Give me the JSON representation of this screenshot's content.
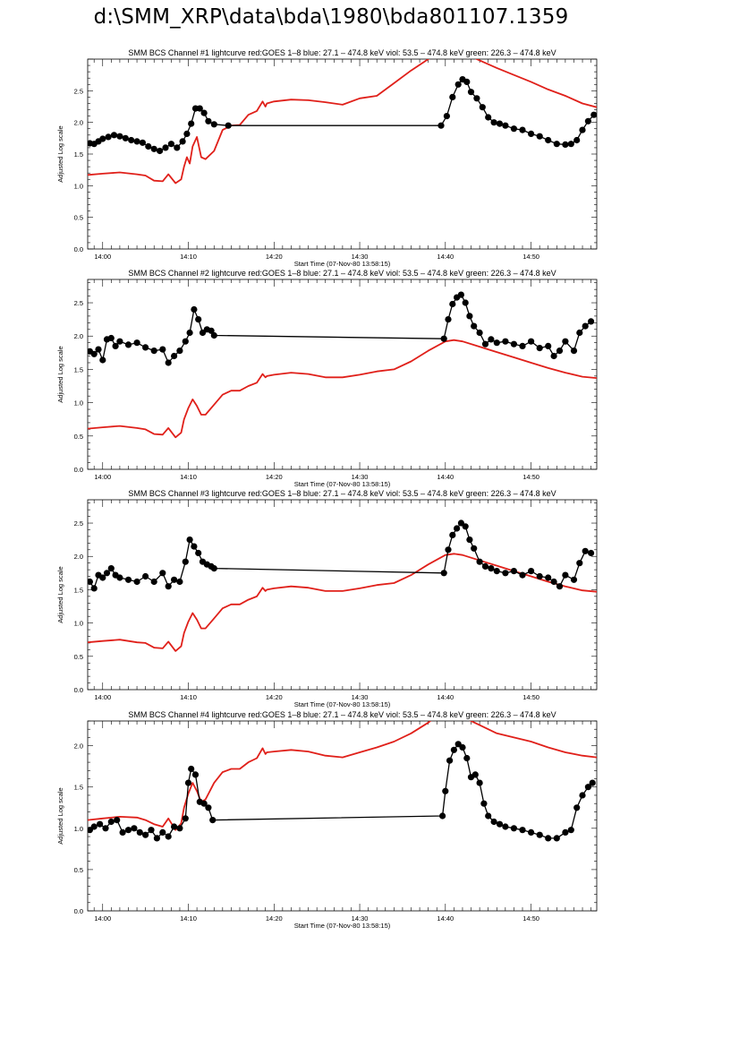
{
  "page": {
    "title": "d:\\SMM_XRP\\data\\bda\\1980\\bda801107.1359"
  },
  "colors": {
    "goes": "#e0201a",
    "bcs": "#000000"
  },
  "chart_data": [
    {
      "type": "line",
      "title": "SMM BCS Channel #1 lightcurve  red:GOES 1–8  blue: 27.1 – 474.8 keV  viol: 53.5 – 474.8 keV  green: 226.3 – 474.8 keV",
      "xlabel": "Start Time (07-Nov-80 13:58:15)",
      "ylabel": "Adjusted Log scale",
      "xlim": [
        "13:58:15",
        "14:57:40"
      ],
      "ylim": [
        0,
        3.0
      ],
      "xticks": [
        "14:00",
        "14:10",
        "14:20",
        "14:30",
        "14:40",
        "14:50"
      ],
      "yticks": [
        "0.0",
        "0.5",
        "1.0",
        "1.5",
        "2.0",
        "2.5"
      ],
      "series": [
        {
          "color": "#e0201a",
          "markers": false,
          "x": [
            "13:58:15",
            "14:00",
            "14:02",
            "14:04",
            "14:05",
            "14:06",
            "14:07",
            "14:07:40",
            "14:08:30",
            "14:09:10",
            "14:09:30",
            "14:09:50",
            "14:10:10",
            "14:10:30",
            "14:11",
            "14:11:30",
            "14:12",
            "14:13",
            "14:14",
            "14:15",
            "14:16",
            "14:17",
            "14:18",
            "14:18:40",
            "14:19",
            "14:19:10",
            "14:20",
            "14:22",
            "14:24",
            "14:26",
            "14:28",
            "14:30",
            "14:32",
            "14:34",
            "14:36",
            "14:38",
            "14:40",
            "14:42",
            "14:44",
            "14:46",
            "14:48",
            "14:50",
            "14:52",
            "14:54",
            "14:56",
            "14:57:40"
          ],
          "y": [
            1.17,
            1.19,
            1.21,
            1.18,
            1.16,
            1.08,
            1.07,
            1.18,
            1.04,
            1.1,
            1.3,
            1.45,
            1.35,
            1.62,
            1.77,
            1.45,
            1.42,
            1.55,
            1.88,
            1.95,
            1.96,
            2.12,
            2.18,
            2.33,
            2.25,
            2.3,
            2.33,
            2.36,
            2.35,
            2.32,
            2.28,
            2.38,
            2.42,
            2.62,
            2.82,
            3.0,
            3.15,
            3.1,
            2.98,
            2.86,
            2.75,
            2.64,
            2.52,
            2.42,
            2.3,
            2.24
          ]
        },
        {
          "color": "#000000",
          "markers": true,
          "x": [
            "13:58:30",
            "13:59",
            "13:59:30",
            "14:00",
            "14:00:40",
            "14:01:20",
            "14:02",
            "14:02:40",
            "14:03:20",
            "14:04",
            "14:04:40",
            "14:05:20",
            "14:06",
            "14:06:40",
            "14:07:20",
            "14:08",
            "14:08:40",
            "14:09:20",
            "14:09:50",
            "14:10:20",
            "14:10:50",
            "14:11:20",
            "14:11:50",
            "14:12:20",
            "14:13",
            "14:14:40",
            "14:39:30",
            "14:40:10",
            "14:40:50",
            "14:41:30",
            "14:42",
            "14:42:30",
            "14:43",
            "14:43:40",
            "14:44:20",
            "14:45",
            "14:45:40",
            "14:46:20",
            "14:47",
            "14:48",
            "14:49",
            "14:50",
            "14:51",
            "14:52",
            "14:53",
            "14:54",
            "14:54:40",
            "14:55:20",
            "14:56",
            "14:56:40",
            "14:57:20"
          ],
          "y": [
            1.67,
            1.66,
            1.7,
            1.74,
            1.77,
            1.8,
            1.78,
            1.75,
            1.72,
            1.7,
            1.68,
            1.62,
            1.58,
            1.55,
            1.6,
            1.66,
            1.6,
            1.7,
            1.82,
            1.98,
            2.22,
            2.22,
            2.15,
            2.02,
            1.97,
            1.95,
            1.95,
            2.1,
            2.4,
            2.6,
            2.68,
            2.64,
            2.48,
            2.38,
            2.24,
            2.08,
            2.0,
            1.98,
            1.95,
            1.9,
            1.88,
            1.82,
            1.78,
            1.72,
            1.66,
            1.65,
            1.66,
            1.72,
            1.88,
            2.02,
            2.12
          ]
        }
      ]
    },
    {
      "type": "line",
      "title": "SMM BCS Channel #2 lightcurve  red:GOES 1–8  blue: 27.1 – 474.8 keV  viol: 53.5 – 474.8 keV  green: 226.3 – 474.8 keV",
      "xlabel": "Start Time (07-Nov-80 13:58:15)",
      "ylabel": "Adjusted Log scale",
      "xlim": [
        "13:58:15",
        "14:57:40"
      ],
      "ylim": [
        0,
        2.85
      ],
      "xticks": [
        "14:00",
        "14:10",
        "14:20",
        "14:30",
        "14:40",
        "14:50"
      ],
      "yticks": [
        "0.0",
        "0.5",
        "1.0",
        "1.5",
        "2.0",
        "2.5"
      ],
      "series": [
        {
          "color": "#e0201a",
          "markers": false,
          "x": [
            "13:58:15",
            "14:00",
            "14:02",
            "14:04",
            "14:05",
            "14:06",
            "14:07",
            "14:07:40",
            "14:08:30",
            "14:09:10",
            "14:09:30",
            "14:10",
            "14:10:30",
            "14:11",
            "14:11:30",
            "14:12",
            "14:13",
            "14:14",
            "14:15",
            "14:16",
            "14:17",
            "14:18",
            "14:18:40",
            "14:19",
            "14:19:10",
            "14:20",
            "14:22",
            "14:24",
            "14:26",
            "14:28",
            "14:30",
            "14:32",
            "14:34",
            "14:36",
            "14:38",
            "14:40",
            "14:41",
            "14:42",
            "14:44",
            "14:46",
            "14:48",
            "14:50",
            "14:52",
            "14:54",
            "14:56",
            "14:57:40"
          ],
          "y": [
            0.61,
            0.63,
            0.65,
            0.62,
            0.6,
            0.53,
            0.52,
            0.62,
            0.48,
            0.55,
            0.75,
            0.92,
            1.05,
            0.95,
            0.82,
            0.82,
            0.97,
            1.12,
            1.18,
            1.18,
            1.25,
            1.3,
            1.43,
            1.38,
            1.4,
            1.42,
            1.45,
            1.43,
            1.38,
            1.38,
            1.42,
            1.47,
            1.5,
            1.62,
            1.78,
            1.92,
            1.94,
            1.92,
            1.84,
            1.76,
            1.68,
            1.6,
            1.52,
            1.45,
            1.39,
            1.37
          ]
        },
        {
          "color": "#000000",
          "markers": true,
          "x": [
            "13:58:30",
            "13:59",
            "13:59:30",
            "14:00",
            "14:00:30",
            "14:01",
            "14:01:30",
            "14:02",
            "14:03",
            "14:04",
            "14:05",
            "14:06",
            "14:07",
            "14:07:40",
            "14:08:20",
            "14:09",
            "14:09:40",
            "14:10:10",
            "14:10:40",
            "14:11:10",
            "14:11:40",
            "14:12:10",
            "14:12:40",
            "14:13",
            "14:39:50",
            "14:40:20",
            "14:40:50",
            "14:41:20",
            "14:41:50",
            "14:42:20",
            "14:42:50",
            "14:43:20",
            "14:44",
            "14:44:40",
            "14:45:20",
            "14:46",
            "14:47",
            "14:48",
            "14:49",
            "14:50",
            "14:51",
            "14:52",
            "14:52:40",
            "14:53:20",
            "14:54",
            "14:55",
            "14:55:40",
            "14:56:20",
            "14:57"
          ],
          "y": [
            1.77,
            1.73,
            1.8,
            1.64,
            1.95,
            1.97,
            1.85,
            1.92,
            1.87,
            1.9,
            1.83,
            1.78,
            1.8,
            1.6,
            1.7,
            1.78,
            1.92,
            2.05,
            2.4,
            2.25,
            2.05,
            2.1,
            2.08,
            2.01,
            1.96,
            2.25,
            2.48,
            2.58,
            2.62,
            2.5,
            2.3,
            2.15,
            2.05,
            1.88,
            1.95,
            1.9,
            1.92,
            1.88,
            1.85,
            1.92,
            1.82,
            1.85,
            1.7,
            1.78,
            1.92,
            1.78,
            2.05,
            2.15,
            2.22
          ]
        }
      ]
    },
    {
      "type": "line",
      "title": "SMM BCS Channel #3 lightcurve  red:GOES 1–8  blue: 27.1 – 474.8 keV  viol: 53.5 – 474.8 keV  green: 226.3 – 474.8 keV",
      "xlabel": "Start Time (07-Nov-80 13:58:15)",
      "ylabel": "Adjusted Log scale",
      "xlim": [
        "13:58:15",
        "14:57:40"
      ],
      "ylim": [
        0,
        2.85
      ],
      "xticks": [
        "14:00",
        "14:10",
        "14:20",
        "14:30",
        "14:40",
        "14:50"
      ],
      "yticks": [
        "0.0",
        "0.5",
        "1.0",
        "1.5",
        "2.0",
        "2.5"
      ],
      "series": [
        {
          "color": "#e0201a",
          "markers": false,
          "x": [
            "13:58:15",
            "14:00",
            "14:02",
            "14:04",
            "14:05",
            "14:06",
            "14:07",
            "14:07:40",
            "14:08:30",
            "14:09:10",
            "14:09:30",
            "14:10",
            "14:10:30",
            "14:11",
            "14:11:30",
            "14:12",
            "14:13",
            "14:14",
            "14:15",
            "14:16",
            "14:17",
            "14:18",
            "14:18:40",
            "14:19",
            "14:19:10",
            "14:20",
            "14:22",
            "14:24",
            "14:26",
            "14:28",
            "14:30",
            "14:32",
            "14:34",
            "14:36",
            "14:38",
            "14:40",
            "14:41",
            "14:42",
            "14:44",
            "14:46",
            "14:48",
            "14:50",
            "14:52",
            "14:54",
            "14:56",
            "14:57:40"
          ],
          "y": [
            0.71,
            0.73,
            0.75,
            0.71,
            0.7,
            0.63,
            0.62,
            0.72,
            0.58,
            0.65,
            0.85,
            1.02,
            1.15,
            1.05,
            0.92,
            0.92,
            1.07,
            1.22,
            1.28,
            1.28,
            1.35,
            1.4,
            1.53,
            1.48,
            1.5,
            1.52,
            1.55,
            1.53,
            1.48,
            1.48,
            1.52,
            1.57,
            1.6,
            1.72,
            1.88,
            2.02,
            2.04,
            2.02,
            1.94,
            1.86,
            1.78,
            1.7,
            1.62,
            1.55,
            1.49,
            1.47
          ]
        },
        {
          "color": "#000000",
          "markers": true,
          "x": [
            "13:58:30",
            "13:59",
            "13:59:30",
            "14:00",
            "14:00:30",
            "14:01",
            "14:01:30",
            "14:02",
            "14:03",
            "14:04",
            "14:05",
            "14:06",
            "14:07",
            "14:07:40",
            "14:08:20",
            "14:09",
            "14:09:40",
            "14:10:10",
            "14:10:40",
            "14:11:10",
            "14:11:40",
            "14:12:10",
            "14:12:40",
            "14:13",
            "14:39:50",
            "14:40:20",
            "14:40:50",
            "14:41:20",
            "14:41:50",
            "14:42:20",
            "14:42:50",
            "14:43:20",
            "14:44",
            "14:44:40",
            "14:45:20",
            "14:46",
            "14:47",
            "14:48",
            "14:49",
            "14:50",
            "14:51",
            "14:52",
            "14:52:40",
            "14:53:20",
            "14:54",
            "14:55",
            "14:55:40",
            "14:56:20",
            "14:57"
          ],
          "y": [
            1.62,
            1.52,
            1.72,
            1.68,
            1.75,
            1.82,
            1.72,
            1.68,
            1.65,
            1.62,
            1.7,
            1.62,
            1.75,
            1.55,
            1.65,
            1.62,
            1.92,
            2.25,
            2.15,
            2.05,
            1.92,
            1.88,
            1.85,
            1.82,
            1.75,
            2.1,
            2.32,
            2.42,
            2.5,
            2.45,
            2.25,
            2.12,
            1.92,
            1.85,
            1.82,
            1.78,
            1.75,
            1.78,
            1.72,
            1.78,
            1.7,
            1.68,
            1.62,
            1.55,
            1.72,
            1.65,
            1.9,
            2.08,
            2.05
          ]
        }
      ]
    },
    {
      "type": "line",
      "title": "SMM BCS Channel #4 lightcurve  red:GOES 1–8  blue: 27.1 – 474.8 keV  viol: 53.5 – 474.8 keV  green: 226.3 – 474.8 keV",
      "xlabel": "Start Time (07-Nov-80 13:58:15)",
      "ylabel": "Adjusted Log scale",
      "xlim": [
        "13:58:15",
        "14:57:40"
      ],
      "ylim": [
        0,
        2.3
      ],
      "xticks": [
        "14:00",
        "14:10",
        "14:20",
        "14:30",
        "14:40",
        "14:50"
      ],
      "yticks": [
        "0.0",
        "0.5",
        "1.0",
        "1.5",
        "2.0"
      ],
      "series": [
        {
          "color": "#e0201a",
          "markers": false,
          "x": [
            "13:58:15",
            "14:00",
            "14:02",
            "14:04",
            "14:05",
            "14:06",
            "14:07",
            "14:07:40",
            "14:08:30",
            "14:09:10",
            "14:09:30",
            "14:10",
            "14:10:30",
            "14:11",
            "14:11:30",
            "14:12",
            "14:13",
            "14:14",
            "14:15",
            "14:16",
            "14:17",
            "14:18",
            "14:18:40",
            "14:19",
            "14:19:10",
            "14:20",
            "14:22",
            "14:24",
            "14:26",
            "14:28",
            "14:30",
            "14:32",
            "14:34",
            "14:36",
            "14:38",
            "14:40",
            "14:42",
            "14:44",
            "14:46",
            "14:48",
            "14:50",
            "14:52",
            "14:54",
            "14:56",
            "14:57:40"
          ],
          "y": [
            1.1,
            1.12,
            1.14,
            1.13,
            1.1,
            1.05,
            1.02,
            1.12,
            0.98,
            1.06,
            1.25,
            1.42,
            1.55,
            1.45,
            1.32,
            1.35,
            1.55,
            1.68,
            1.72,
            1.72,
            1.8,
            1.85,
            1.97,
            1.9,
            1.92,
            1.93,
            1.95,
            1.93,
            1.88,
            1.86,
            1.92,
            1.98,
            2.05,
            2.15,
            2.28,
            2.45,
            2.35,
            2.25,
            2.15,
            2.1,
            2.05,
            1.98,
            1.92,
            1.88,
            1.86
          ]
        },
        {
          "color": "#000000",
          "markers": true,
          "x": [
            "13:58:30",
            "13:59",
            "13:59:40",
            "14:00:20",
            "14:01",
            "14:01:40",
            "14:02:20",
            "14:03",
            "14:03:40",
            "14:04:20",
            "14:05",
            "14:05:40",
            "14:06:20",
            "14:07",
            "14:07:40",
            "14:08:20",
            "14:09",
            "14:09:40",
            "14:10",
            "14:10:20",
            "14:10:50",
            "14:11:20",
            "14:11:50",
            "14:12:20",
            "14:12:50",
            "14:39:40",
            "14:40",
            "14:40:30",
            "14:41",
            "14:41:30",
            "14:42",
            "14:42:30",
            "14:43",
            "14:43:30",
            "14:44",
            "14:44:30",
            "14:45",
            "14:45:40",
            "14:46:20",
            "14:47",
            "14:48",
            "14:49",
            "14:50",
            "14:51",
            "14:52",
            "14:53",
            "14:54",
            "14:54:40",
            "14:55:20",
            "14:56",
            "14:56:40",
            "14:57:10"
          ],
          "y": [
            0.98,
            1.02,
            1.05,
            1.0,
            1.08,
            1.1,
            0.95,
            0.98,
            1.0,
            0.95,
            0.92,
            0.98,
            0.88,
            0.95,
            0.9,
            1.02,
            1.0,
            1.12,
            1.55,
            1.72,
            1.65,
            1.32,
            1.3,
            1.25,
            1.1,
            1.15,
            1.45,
            1.82,
            1.95,
            2.02,
            1.98,
            1.85,
            1.62,
            1.65,
            1.55,
            1.3,
            1.15,
            1.08,
            1.05,
            1.02,
            1.0,
            0.98,
            0.95,
            0.92,
            0.88,
            0.88,
            0.95,
            0.98,
            1.25,
            1.4,
            1.5,
            1.55
          ]
        }
      ]
    }
  ]
}
